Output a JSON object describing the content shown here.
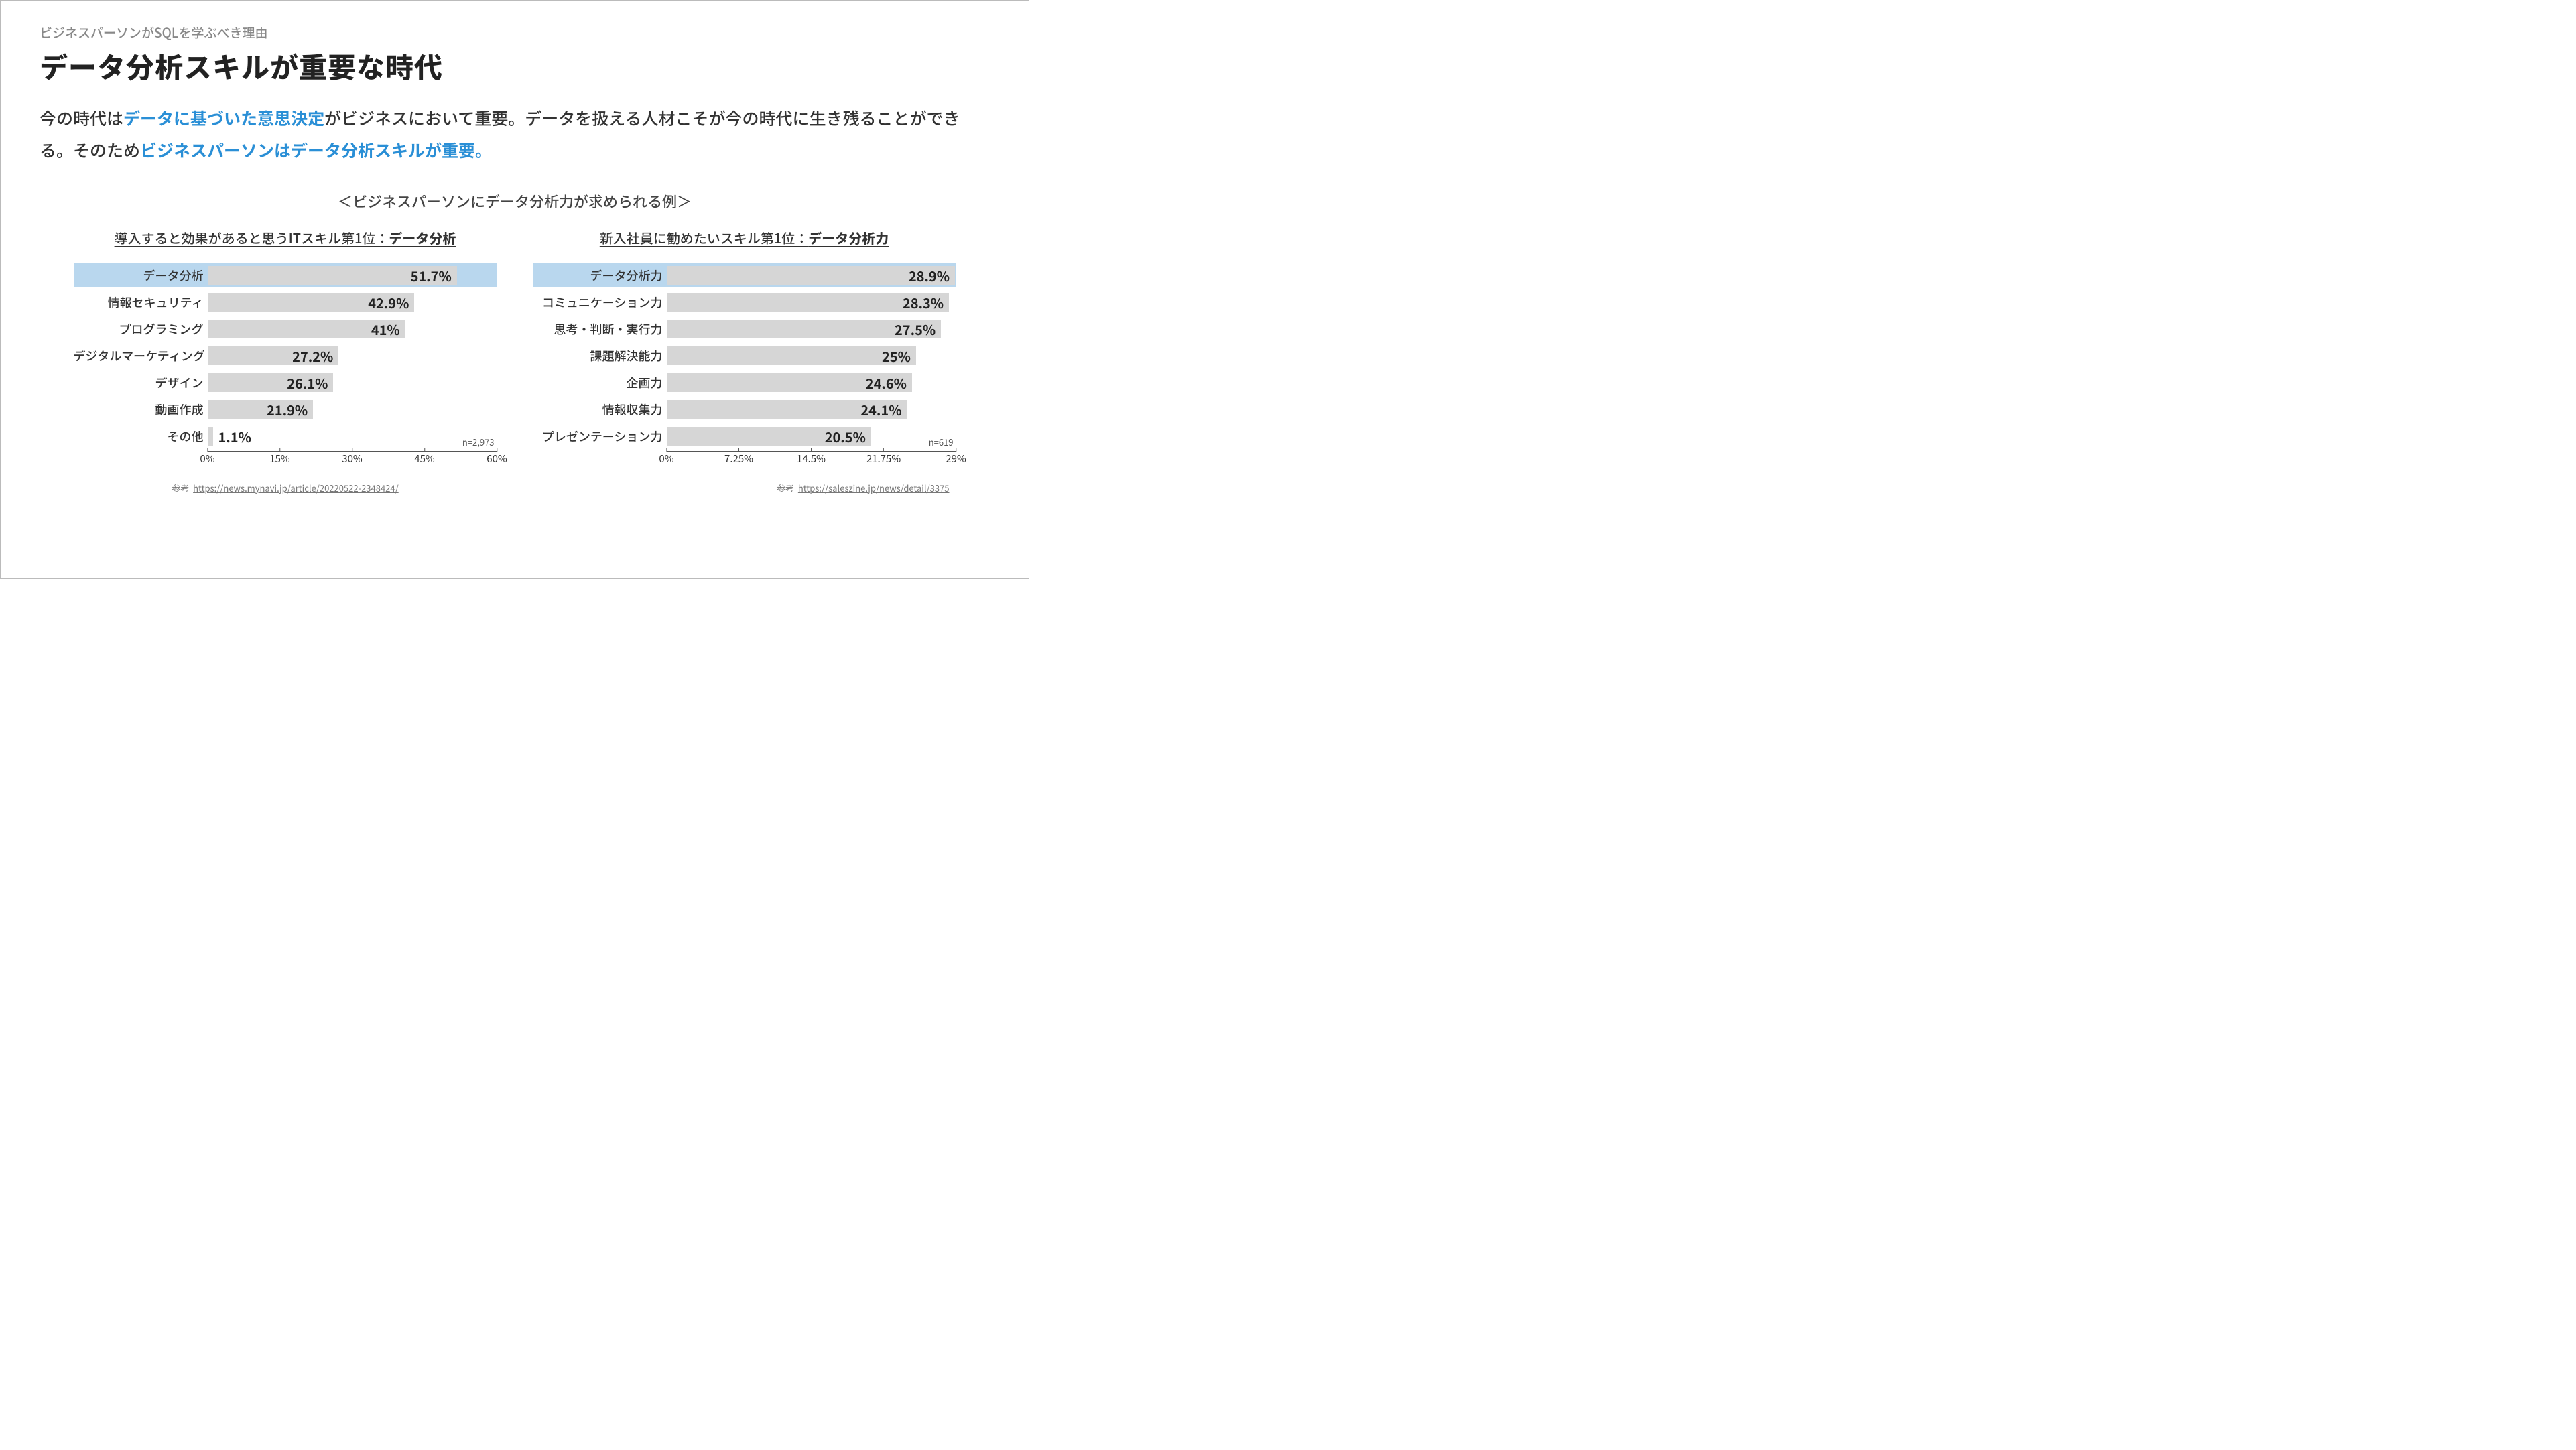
{
  "header": {
    "subtitle": "ビジネスパーソンがSQLを学ぶべき理由",
    "title": "データ分析スキルが重要な時代"
  },
  "lead": {
    "t1": "今の時代は",
    "h1": "データに基づいた意思決定",
    "t2": "がビジネスにおいて重要。データを扱える人材こそが今の時代に生き残ることができる。そのため",
    "h2": "ビジネスパーソンはデータ分析スキルが重要。"
  },
  "example_heading": "＜ビジネスパーソンにデータ分析力が求められる例＞",
  "colors": {
    "bar": "#d6d6d6",
    "bar_hl_bg": "#b9d7ee",
    "axis": "#555555",
    "text": "#333333",
    "accent": "#2a8fd6"
  },
  "chart_left": {
    "title_pre": "導入すると効果があると思うITスキル第1位：",
    "title_strong": "データ分析",
    "xmax": 60,
    "xticks": [
      0,
      15,
      30,
      45,
      60
    ],
    "xtick_labels": [
      "0%",
      "15%",
      "30%",
      "45%",
      "60%"
    ],
    "n_label": "n=2,973",
    "rows": [
      {
        "label": "データ分析",
        "value": 51.7,
        "display": "51.7%",
        "highlight": true
      },
      {
        "label": "情報セキュリティ",
        "value": 42.9,
        "display": "42.9%",
        "highlight": false
      },
      {
        "label": "プログラミング",
        "value": 41.0,
        "display": "41%",
        "highlight": false
      },
      {
        "label": "デジタルマーケティング",
        "value": 27.2,
        "display": "27.2%",
        "highlight": false
      },
      {
        "label": "デザイン",
        "value": 26.1,
        "display": "26.1%",
        "highlight": false
      },
      {
        "label": "動画作成",
        "value": 21.9,
        "display": "21.9%",
        "highlight": false
      },
      {
        "label": "その他",
        "value": 1.1,
        "display": "1.1%",
        "highlight": false
      }
    ],
    "ref_label": "参考",
    "ref_url": "https://news.mynavi.jp/article/20220522-2348424/"
  },
  "chart_right": {
    "title_pre": "新入社員に勧めたいスキル第1位：",
    "title_strong": "データ分析力",
    "xmax": 29,
    "xticks": [
      0,
      7.25,
      14.5,
      21.75,
      29
    ],
    "xtick_labels": [
      "0%",
      "7.25%",
      "14.5%",
      "21.75%",
      "29%"
    ],
    "n_label": "n=619",
    "rows": [
      {
        "label": "データ分析力",
        "value": 28.9,
        "display": "28.9%",
        "highlight": true
      },
      {
        "label": "コミュニケーション力",
        "value": 28.3,
        "display": "28.3%",
        "highlight": false
      },
      {
        "label": "思考・判断・実行力",
        "value": 27.5,
        "display": "27.5%",
        "highlight": false
      },
      {
        "label": "課題解決能力",
        "value": 25.0,
        "display": "25%",
        "highlight": false
      },
      {
        "label": "企画力",
        "value": 24.6,
        "display": "24.6%",
        "highlight": false
      },
      {
        "label": "情報収集力",
        "value": 24.1,
        "display": "24.1%",
        "highlight": false
      },
      {
        "label": "プレゼンテーション力",
        "value": 20.5,
        "display": "20.5%",
        "highlight": false
      }
    ],
    "ref_label": "参考",
    "ref_url": "https://saleszine.jp/news/detail/3375"
  }
}
